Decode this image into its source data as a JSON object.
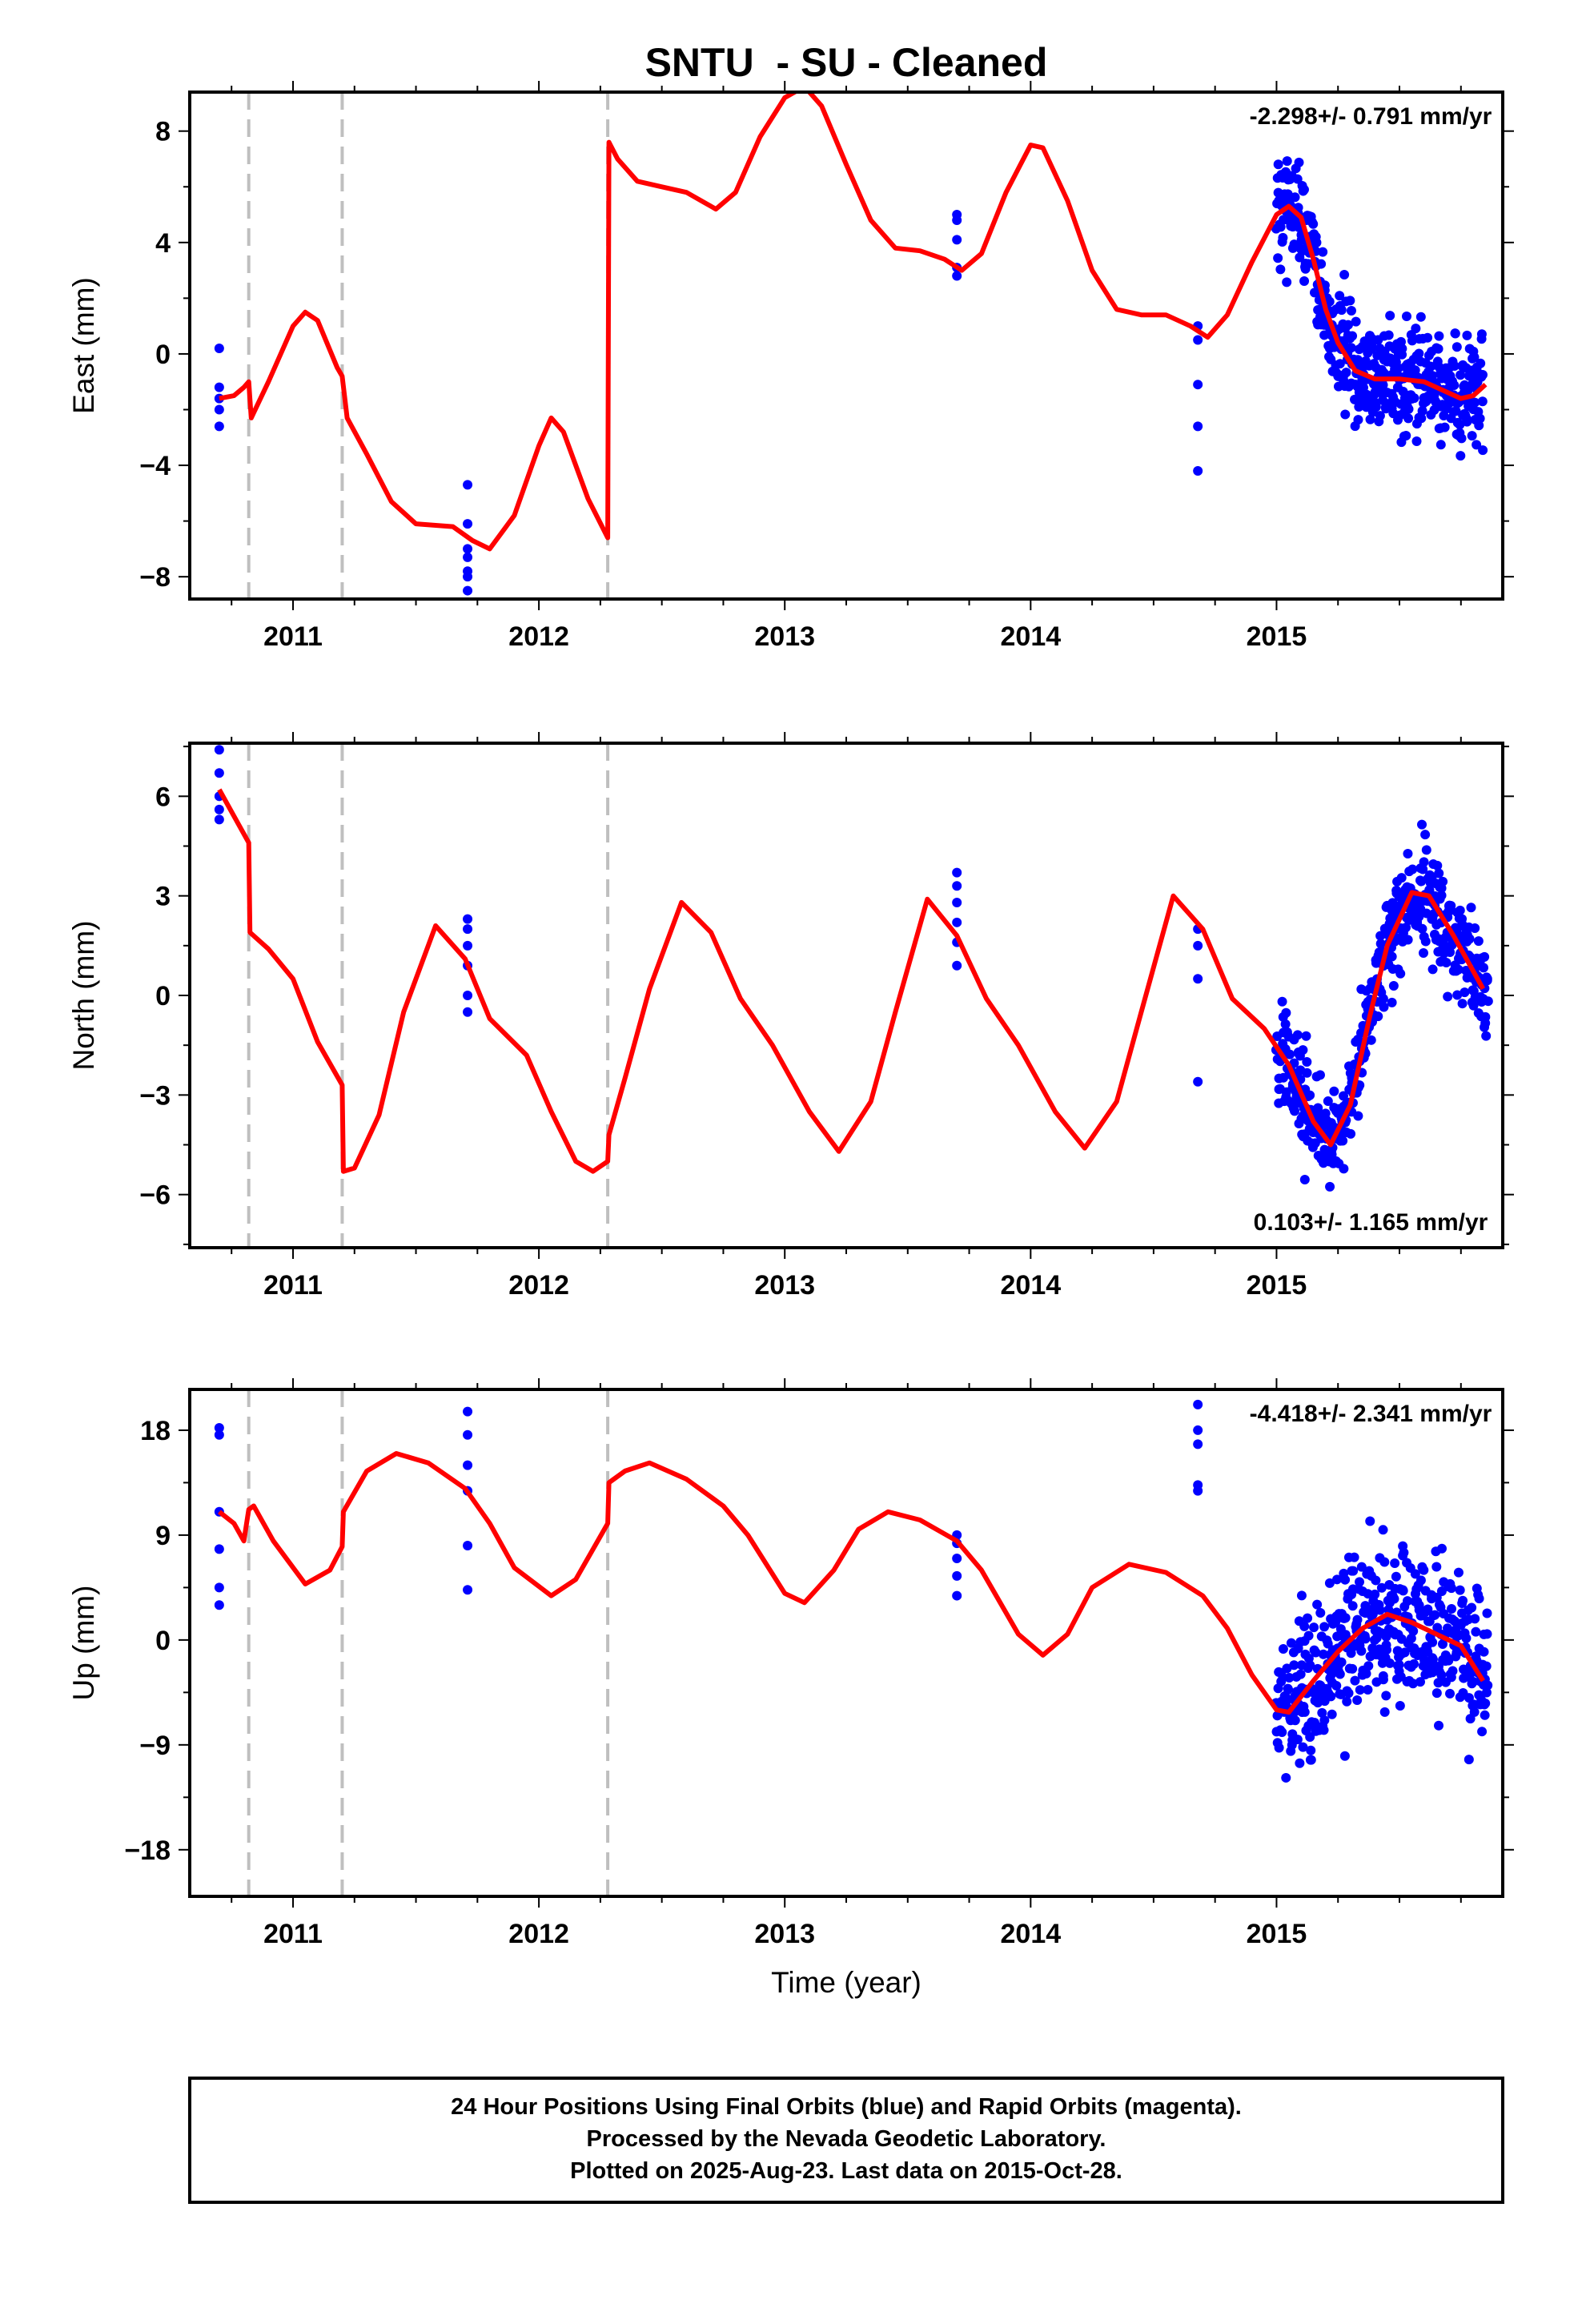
{
  "colors": {
    "final_orbits": "#0000ff",
    "model_fit": "#ff0000",
    "offset_lines": "#bfbfbf",
    "axes": "#000000"
  },
  "chart_data": {
    "title": "SNTU  - SU - Cleaned",
    "xlabel": "Time (year)",
    "x_ticks": [
      2011,
      2012,
      2013,
      2014,
      2015
    ],
    "xlim": [
      2010.58,
      2015.92
    ],
    "offset_epochs": [
      2010.82,
      2011.2,
      2012.28
    ],
    "panels": [
      {
        "type": "scatter",
        "component": "East",
        "ylabel": "East (mm)",
        "ylim": [
          -8.8,
          9.4
        ],
        "y_ticks": [
          -8,
          -4,
          0,
          4,
          8
        ],
        "rate_text": "-2.298+/- 0.791 mm/yr",
        "rate_position": "top-right",
        "fit": {
          "x": [
            2010.7,
            2010.76,
            2010.8,
            2010.82,
            2010.83,
            2010.9,
            2011.0,
            2011.05,
            2011.1,
            2011.18,
            2011.2,
            2011.22,
            2011.3,
            2011.4,
            2011.5,
            2011.65,
            2011.73,
            2011.8,
            2011.9,
            2012.0,
            2012.05,
            2012.1,
            2012.2,
            2012.28,
            2012.285,
            2012.32,
            2012.4,
            2012.5,
            2012.6,
            2012.72,
            2012.8,
            2012.9,
            2013.0,
            2013.08,
            2013.15,
            2013.25,
            2013.35,
            2013.45,
            2013.55,
            2013.65,
            2013.72,
            2013.8,
            2013.9,
            2014.0,
            2014.05,
            2014.15,
            2014.25,
            2014.35,
            2014.45,
            2014.55,
            2014.65,
            2014.72,
            2014.8,
            2014.9,
            2015.0,
            2015.05,
            2015.1,
            2015.15,
            2015.2,
            2015.25,
            2015.32,
            2015.4,
            2015.5,
            2015.6,
            2015.7,
            2015.75,
            2015.8,
            2015.85
          ],
          "y": [
            -1.6,
            -1.5,
            -1.2,
            -1.0,
            -2.3,
            -1.0,
            1.0,
            1.5,
            1.2,
            -0.5,
            -0.8,
            -2.3,
            -3.6,
            -5.3,
            -6.1,
            -6.2,
            -6.7,
            -7.0,
            -5.8,
            -3.3,
            -2.3,
            -2.8,
            -5.2,
            -6.6,
            7.6,
            7.0,
            6.2,
            6.0,
            5.8,
            5.2,
            5.8,
            7.8,
            9.2,
            9.6,
            8.9,
            6.8,
            4.8,
            3.8,
            3.7,
            3.4,
            3.0,
            3.6,
            5.8,
            7.5,
            7.4,
            5.5,
            3.0,
            1.6,
            1.4,
            1.4,
            1.0,
            0.6,
            1.4,
            3.3,
            5.0,
            5.3,
            4.9,
            3.4,
            1.6,
            0.4,
            -0.6,
            -0.9,
            -0.9,
            -1.0,
            -1.4,
            -1.6,
            -1.5,
            -1.1
          ]
        },
        "observations": {
          "x": [
            2010.7,
            2010.7,
            2010.7,
            2010.7,
            2010.7,
            2011.71,
            2011.71,
            2011.71,
            2011.71,
            2011.71,
            2011.71,
            2011.71,
            2013.7,
            2013.7,
            2013.7,
            2013.7,
            2013.7,
            2014.68,
            2014.68,
            2014.68,
            2014.68,
            2014.68
          ],
          "y": [
            0.2,
            -1.2,
            -1.6,
            -2.0,
            -2.6,
            -4.7,
            -6.1,
            -7.0,
            -7.3,
            -7.8,
            -8.5,
            -8.0,
            5.0,
            4.8,
            4.1,
            3.1,
            2.8,
            1.0,
            0.5,
            -1.1,
            -2.6,
            -4.2
          ]
        },
        "dense_cloud": {
          "x_range": [
            2015.0,
            2015.84
          ],
          "trend_follows_fit": true,
          "scatter_mm": 1.8
        }
      },
      {
        "type": "scatter",
        "component": "North",
        "ylabel": "North (mm)",
        "ylim": [
          -7.6,
          7.6
        ],
        "y_ticks": [
          -6,
          -3,
          0,
          3,
          6
        ],
        "rate_text": "0.103+/- 1.165 mm/yr",
        "rate_position": "bottom-right",
        "fit": {
          "x": [
            2010.7,
            2010.76,
            2010.82,
            2010.825,
            2010.9,
            2011.0,
            2011.1,
            2011.2,
            2011.205,
            2011.25,
            2011.35,
            2011.45,
            2011.58,
            2011.7,
            2011.8,
            2011.95,
            2012.05,
            2012.15,
            2012.22,
            2012.28,
            2012.285,
            2012.35,
            2012.45,
            2012.58,
            2012.7,
            2012.82,
            2012.95,
            2013.1,
            2013.22,
            2013.35,
            2013.45,
            2013.58,
            2013.7,
            2013.82,
            2013.95,
            2014.1,
            2014.22,
            2014.35,
            2014.45,
            2014.58,
            2014.7,
            2014.82,
            2014.95,
            2015.05,
            2015.15,
            2015.22,
            2015.3,
            2015.38,
            2015.45,
            2015.55,
            2015.62,
            2015.72,
            2015.84
          ],
          "y": [
            6.2,
            5.4,
            4.6,
            1.9,
            1.4,
            0.5,
            -1.4,
            -2.7,
            -5.3,
            -5.2,
            -3.6,
            -0.5,
            2.1,
            1.1,
            -0.7,
            -1.8,
            -3.5,
            -5.0,
            -5.3,
            -5.0,
            -4.2,
            -2.5,
            0.2,
            2.8,
            1.9,
            -0.1,
            -1.5,
            -3.5,
            -4.7,
            -3.2,
            -0.5,
            2.9,
            1.8,
            -0.1,
            -1.5,
            -3.5,
            -4.6,
            -3.2,
            -0.5,
            3.0,
            2.0,
            -0.1,
            -1.0,
            -2.1,
            -3.8,
            -4.5,
            -3.3,
            -0.6,
            1.5,
            3.1,
            3.0,
            1.8,
            0.2
          ]
        },
        "observations": {
          "x": [
            2010.7,
            2010.7,
            2010.7,
            2010.7,
            2010.7,
            2011.71,
            2011.71,
            2011.71,
            2011.71,
            2011.71,
            2011.71,
            2013.7,
            2013.7,
            2013.7,
            2013.7,
            2013.7,
            2013.7,
            2014.68,
            2014.68,
            2014.68,
            2014.68
          ],
          "y": [
            7.4,
            6.7,
            6.0,
            5.6,
            5.3,
            2.3,
            2.0,
            1.5,
            0.9,
            0.0,
            -0.5,
            3.7,
            3.3,
            2.8,
            2.2,
            1.6,
            0.9,
            2.0,
            1.5,
            0.5,
            -2.6
          ]
        },
        "dense_cloud": {
          "x_range": [
            2015.0,
            2015.86
          ],
          "trend_follows_fit": true,
          "scatter_mm": 1.3
        }
      },
      {
        "type": "scatter",
        "component": "Up",
        "ylabel": "Up (mm)",
        "ylim": [
          -22.0,
          21.5
        ],
        "y_ticks": [
          -18,
          -9,
          0,
          9,
          18
        ],
        "rate_text": "-4.418+/- 2.341 mm/yr",
        "rate_position": "top-right",
        "fit": {
          "x": [
            2010.7,
            2010.76,
            2010.8,
            2010.82,
            2010.84,
            2010.92,
            2011.05,
            2011.15,
            2011.2,
            2011.205,
            2011.3,
            2011.42,
            2011.55,
            2011.7,
            2011.8,
            2011.9,
            2012.05,
            2012.15,
            2012.28,
            2012.285,
            2012.35,
            2012.45,
            2012.6,
            2012.75,
            2012.85,
            2013.0,
            2013.08,
            2013.2,
            2013.3,
            2013.42,
            2013.55,
            2013.7,
            2013.8,
            2013.95,
            2014.05,
            2014.15,
            2014.25,
            2014.4,
            2014.55,
            2014.7,
            2014.8,
            2014.9,
            2015.0,
            2015.05,
            2015.15,
            2015.25,
            2015.35,
            2015.45,
            2015.55,
            2015.65,
            2015.75,
            2015.84
          ],
          "y": [
            11.0,
            10.0,
            8.5,
            11.2,
            11.5,
            8.5,
            4.8,
            6.0,
            8.0,
            11.0,
            14.5,
            16.0,
            15.2,
            13.0,
            10.0,
            6.2,
            3.8,
            5.2,
            10.0,
            13.5,
            14.5,
            15.2,
            13.8,
            11.5,
            9.0,
            4.0,
            3.2,
            6.0,
            9.5,
            11.0,
            10.3,
            8.5,
            6.0,
            0.5,
            -1.3,
            0.5,
            4.5,
            6.5,
            5.8,
            3.8,
            1.0,
            -3.0,
            -6.0,
            -6.2,
            -3.5,
            -1.0,
            1.0,
            2.2,
            1.5,
            0.5,
            -0.5,
            -3.5
          ]
        },
        "observations": {
          "x": [
            2010.7,
            2010.7,
            2010.7,
            2010.7,
            2010.7,
            2010.7,
            2011.71,
            2011.71,
            2011.71,
            2011.71,
            2011.71,
            2011.71,
            2013.7,
            2013.7,
            2013.7,
            2013.7,
            2013.7,
            2014.68,
            2014.68,
            2014.68,
            2014.68,
            2014.68
          ],
          "y": [
            18.2,
            17.6,
            11.0,
            7.8,
            4.5,
            3.0,
            19.6,
            17.6,
            15.0,
            12.8,
            8.1,
            4.3,
            9.0,
            8.3,
            7.0,
            5.5,
            3.8,
            20.2,
            18.0,
            16.8,
            13.3,
            12.8
          ]
        },
        "dense_cloud": {
          "x_range": [
            2015.0,
            2015.86
          ],
          "trend_follows_fit": true,
          "scatter_mm": 6.0
        }
      }
    ],
    "footer": [
      "24 Hour Positions Using Final Orbits (blue) and Rapid Orbits (magenta).",
      "Processed by the Nevada Geodetic Laboratory.",
      "Plotted on 2025-Aug-23. Last data on 2015-Oct-28."
    ]
  }
}
